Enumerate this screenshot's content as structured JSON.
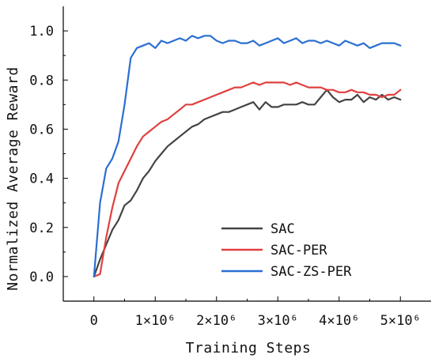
{
  "chart_data": {
    "type": "line",
    "title": "",
    "xlabel": "Training Steps",
    "ylabel": "Normalized Average Reward",
    "xlim": [
      -500000,
      5500000
    ],
    "ylim": [
      -0.1,
      1.1
    ],
    "xticks": [
      {
        "value": 0,
        "label": "0"
      },
      {
        "value": 1000000,
        "label": "1×10⁶"
      },
      {
        "value": 2000000,
        "label": "2×10⁶"
      },
      {
        "value": 3000000,
        "label": "3×10⁶"
      },
      {
        "value": 4000000,
        "label": "4×10⁶"
      },
      {
        "value": 5000000,
        "label": "5×10⁶"
      }
    ],
    "yticks": [
      {
        "value": 0.0,
        "label": "0.0"
      },
      {
        "value": 0.2,
        "label": "0.2"
      },
      {
        "value": 0.4,
        "label": "0.4"
      },
      {
        "value": 0.6,
        "label": "0.6"
      },
      {
        "value": 0.8,
        "label": "0.8"
      },
      {
        "value": 1.0,
        "label": "1.0"
      }
    ],
    "grid": false,
    "legend_position": "lower-right",
    "series": [
      {
        "name": "SAC",
        "color": "#444444",
        "x": [
          0,
          100000,
          200000,
          300000,
          400000,
          500000,
          600000,
          700000,
          800000,
          900000,
          1000000,
          1100000,
          1200000,
          1300000,
          1400000,
          1500000,
          1600000,
          1700000,
          1800000,
          1900000,
          2000000,
          2100000,
          2200000,
          2300000,
          2400000,
          2500000,
          2600000,
          2700000,
          2800000,
          2900000,
          3000000,
          3100000,
          3200000,
          3300000,
          3400000,
          3500000,
          3600000,
          3700000,
          3800000,
          3900000,
          4000000,
          4100000,
          4200000,
          4300000,
          4400000,
          4500000,
          4600000,
          4700000,
          4800000,
          4900000,
          5000000
        ],
        "y": [
          0.0,
          0.07,
          0.13,
          0.19,
          0.23,
          0.29,
          0.31,
          0.35,
          0.4,
          0.43,
          0.47,
          0.5,
          0.53,
          0.55,
          0.57,
          0.59,
          0.61,
          0.62,
          0.64,
          0.65,
          0.66,
          0.67,
          0.67,
          0.68,
          0.69,
          0.7,
          0.71,
          0.68,
          0.71,
          0.69,
          0.69,
          0.7,
          0.7,
          0.7,
          0.71,
          0.7,
          0.7,
          0.73,
          0.76,
          0.73,
          0.71,
          0.72,
          0.72,
          0.74,
          0.71,
          0.73,
          0.72,
          0.74,
          0.72,
          0.73,
          0.72
        ]
      },
      {
        "name": "SAC-PER",
        "color": "#e04040",
        "x": [
          0,
          100000,
          200000,
          300000,
          400000,
          500000,
          600000,
          700000,
          800000,
          900000,
          1000000,
          1100000,
          1200000,
          1300000,
          1400000,
          1500000,
          1600000,
          1700000,
          1800000,
          1900000,
          2000000,
          2100000,
          2200000,
          2300000,
          2400000,
          2500000,
          2600000,
          2700000,
          2800000,
          2900000,
          3000000,
          3100000,
          3200000,
          3300000,
          3400000,
          3500000,
          3600000,
          3700000,
          3800000,
          3900000,
          4000000,
          4100000,
          4200000,
          4300000,
          4400000,
          4500000,
          4600000,
          4700000,
          4800000,
          4900000,
          5000000
        ],
        "y": [
          0.0,
          0.01,
          0.16,
          0.28,
          0.38,
          0.43,
          0.48,
          0.53,
          0.57,
          0.59,
          0.61,
          0.63,
          0.64,
          0.66,
          0.68,
          0.7,
          0.7,
          0.71,
          0.72,
          0.73,
          0.74,
          0.75,
          0.76,
          0.77,
          0.77,
          0.78,
          0.79,
          0.78,
          0.79,
          0.79,
          0.79,
          0.79,
          0.78,
          0.79,
          0.78,
          0.77,
          0.77,
          0.77,
          0.76,
          0.76,
          0.75,
          0.75,
          0.76,
          0.75,
          0.75,
          0.74,
          0.74,
          0.73,
          0.74,
          0.74,
          0.76
        ]
      },
      {
        "name": "SAC-ZS-PER",
        "color": "#2a6fd1",
        "x": [
          0,
          100000,
          200000,
          300000,
          400000,
          500000,
          600000,
          700000,
          800000,
          900000,
          1000000,
          1100000,
          1200000,
          1300000,
          1400000,
          1500000,
          1600000,
          1700000,
          1800000,
          1900000,
          2000000,
          2100000,
          2200000,
          2300000,
          2400000,
          2500000,
          2600000,
          2700000,
          2800000,
          2900000,
          3000000,
          3100000,
          3200000,
          3300000,
          3400000,
          3500000,
          3600000,
          3700000,
          3800000,
          3900000,
          4000000,
          4100000,
          4200000,
          4300000,
          4400000,
          4500000,
          4600000,
          4700000,
          4800000,
          4900000,
          5000000
        ],
        "y": [
          0.0,
          0.3,
          0.44,
          0.48,
          0.55,
          0.7,
          0.89,
          0.93,
          0.94,
          0.95,
          0.93,
          0.96,
          0.95,
          0.96,
          0.97,
          0.96,
          0.98,
          0.97,
          0.98,
          0.98,
          0.96,
          0.95,
          0.96,
          0.96,
          0.95,
          0.95,
          0.96,
          0.94,
          0.95,
          0.96,
          0.97,
          0.95,
          0.96,
          0.97,
          0.95,
          0.96,
          0.96,
          0.95,
          0.96,
          0.95,
          0.94,
          0.96,
          0.95,
          0.94,
          0.95,
          0.93,
          0.94,
          0.95,
          0.95,
          0.95,
          0.94
        ]
      }
    ]
  }
}
